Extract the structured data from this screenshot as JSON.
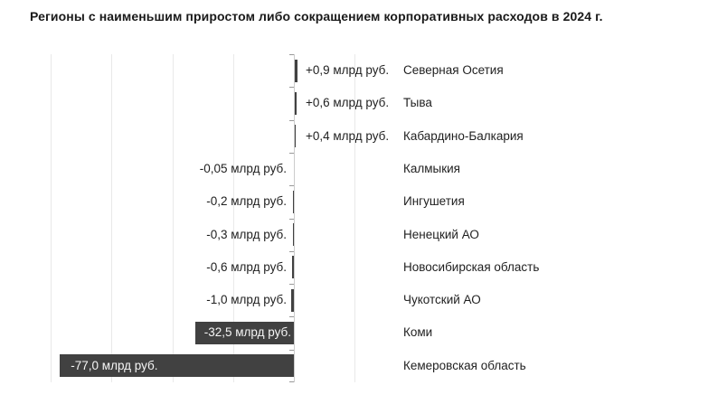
{
  "title": "Регионы с наименьшим приростом либо сокращением корпоративных расходов в 2024 г.",
  "chart_data": {
    "type": "bar",
    "orientation": "horizontal",
    "title": "Регионы с наименьшим приростом либо сокращением корпоративных расходов в 2024 г.",
    "unit": "млрд руб.",
    "categories": [
      "Северная Осетия",
      "Тыва",
      "Кабардино-Балкария",
      "Калмыкия",
      "Ингушетия",
      "Ненецкий АО",
      "Новосибирская область",
      "Чукотский АО",
      "Коми",
      "Кемеровская область"
    ],
    "values": [
      0.9,
      0.6,
      0.4,
      -0.05,
      -0.2,
      -0.3,
      -0.6,
      -1.0,
      -32.5,
      -77.0
    ],
    "value_labels": [
      "+0,9 млрд руб.",
      "+0,6 млрд руб.",
      "+0,4 млрд руб.",
      "-0,05 млрд руб.",
      "-0,2 млрд руб.",
      "-0,3 млрд руб.",
      "-0,6 млрд руб.",
      "-1,0 млрд руб.",
      "-32,5 млрд руб.",
      "-77,0 млрд руб."
    ],
    "label_placement": [
      "outside-right",
      "outside-right",
      "outside-right",
      "outside-left",
      "outside-left",
      "outside-left",
      "outside-left",
      "outside-left",
      "inside-right",
      "inside-left"
    ],
    "xlim": [
      -80,
      20
    ],
    "gridline_step": 20,
    "grid": true,
    "legend": "none",
    "colors": {
      "bar": "#414141",
      "grid": "#e9e9e9",
      "axis": "#cccccc",
      "tick": "#999999",
      "label_outside": "#1f1f1f",
      "label_inside": "#f5f5f5"
    }
  }
}
